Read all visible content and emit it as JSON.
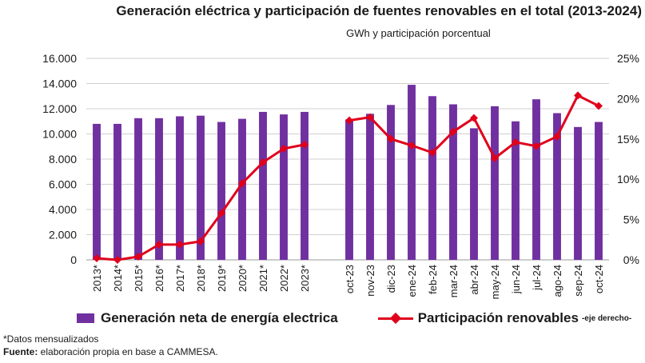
{
  "title": "Generación eléctrica y participación de fuentes renovables en el total (2013-2024)",
  "subtitle": "GWh y participación porcentual",
  "colors": {
    "bar": "#7030a0",
    "line": "#e0001b",
    "grid": "#cfcfcf"
  },
  "legend": {
    "bar_label": "Generación neta de energía electrica",
    "line_label": "Participación renovables",
    "line_note": "-eje derecho-"
  },
  "footnote": "*Datos mensualizados",
  "source_label": "Fuente:",
  "source_text": " elaboración propia en base a CAMMESA.",
  "chart_data": {
    "type": "bar",
    "title": "Generación eléctrica y participación de fuentes renovables en el total (2013-2024)",
    "subtitle": "GWh y participación porcentual",
    "categories": [
      "2013*",
      "2014*",
      "2015*",
      "2016*",
      "2017*",
      "2018*",
      "2019*",
      "2020*",
      "2021*",
      "2022*",
      "2023*",
      "oct-23",
      "nov-23",
      "dic-23",
      "ene-24",
      "feb-24",
      "mar-24",
      "abr-24",
      "may-24",
      "jun-24",
      "jul-24",
      "ago-24",
      "sep-24",
      "oct-24"
    ],
    "series": [
      {
        "name": "Generación neta de energía electrica",
        "type": "bar",
        "axis": "left",
        "values": [
          10800,
          10800,
          11250,
          11250,
          11400,
          11450,
          10950,
          11200,
          11750,
          11550,
          11750,
          11150,
          11600,
          12300,
          13900,
          13000,
          12350,
          10450,
          12200,
          11000,
          12750,
          11650,
          10550,
          10950
        ]
      },
      {
        "name": "Participación renovables",
        "type": "line",
        "axis": "right",
        "values": [
          0.2,
          0.0,
          0.4,
          1.9,
          1.9,
          2.3,
          5.8,
          9.5,
          12.1,
          13.8,
          14.3,
          17.3,
          17.7,
          15.0,
          14.2,
          13.3,
          15.9,
          17.6,
          12.6,
          14.6,
          14.1,
          15.3,
          20.4,
          19.1
        ]
      }
    ],
    "yleft": {
      "ylim": [
        0,
        16000
      ],
      "ticks": [
        "0",
        "2.000",
        "4.000",
        "6.000",
        "8.000",
        "10.000",
        "12.000",
        "14.000",
        "16.000"
      ]
    },
    "yright": {
      "ylim": [
        0,
        25
      ],
      "ticks": [
        "0%",
        "5%",
        "10%",
        "15%",
        "20%",
        "25%"
      ]
    },
    "gap_after_index": 10,
    "grid": true,
    "legend_position": "bottom"
  }
}
